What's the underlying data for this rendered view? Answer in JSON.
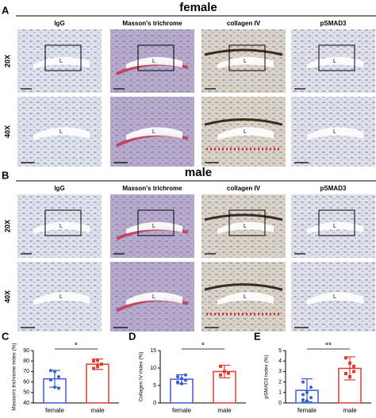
{
  "figure": {
    "panels": [
      {
        "letter": "A",
        "title": "female"
      },
      {
        "letter": "B",
        "title": "male"
      }
    ],
    "columns": [
      "IgG",
      "Masson's trichrome",
      "collagen IV",
      "pSMAD3"
    ],
    "rows": [
      "20X",
      "40X"
    ],
    "lumen_label": "L"
  },
  "chart_data": [
    {
      "type": "bar",
      "panel": "C",
      "ylabel": "Masson's trichrome index (%)",
      "categories": [
        "female",
        "male"
      ],
      "values": [
        63,
        77
      ],
      "errors": [
        8,
        5
      ],
      "colors": [
        "#3a5fcd",
        "#e03c31"
      ],
      "points": [
        [
          71,
          70,
          65,
          62,
          55,
          54
        ],
        [
          80,
          81,
          77,
          73,
          75
        ]
      ],
      "ylim": [
        40,
        90
      ],
      "yticks": [
        40,
        50,
        60,
        70,
        80,
        90
      ],
      "significance": "*"
    },
    {
      "type": "bar",
      "panel": "D",
      "ylabel": "Collagen IV index (%)",
      "categories": [
        "female",
        "male"
      ],
      "values": [
        6.8,
        9
      ],
      "errors": [
        1.3,
        1.8
      ],
      "colors": [
        "#3a5fcd",
        "#e03c31"
      ],
      "points": [
        [
          7.5,
          7,
          6.5,
          6,
          5.5,
          8
        ],
        [
          10.5,
          9,
          8.5,
          8
        ]
      ],
      "ylim": [
        0,
        15
      ],
      "yticks": [
        0,
        5,
        10,
        15
      ],
      "significance": "*"
    },
    {
      "type": "bar",
      "panel": "E",
      "ylabel": "pSMAD3 index (%)",
      "categories": [
        "female",
        "male"
      ],
      "values": [
        1.2,
        3.3
      ],
      "errors": [
        1.1,
        1.1
      ],
      "colors": [
        "#3a5fcd",
        "#e03c31"
      ],
      "points": [
        [
          2,
          1,
          0.5,
          0.3,
          0.2,
          1.5,
          0.8
        ],
        [
          4.3,
          3.8,
          3,
          2.8,
          2.5,
          3.5
        ]
      ],
      "ylim": [
        0,
        5
      ],
      "yticks": [
        0,
        1,
        2,
        3,
        4,
        5
      ],
      "significance": "**"
    }
  ]
}
